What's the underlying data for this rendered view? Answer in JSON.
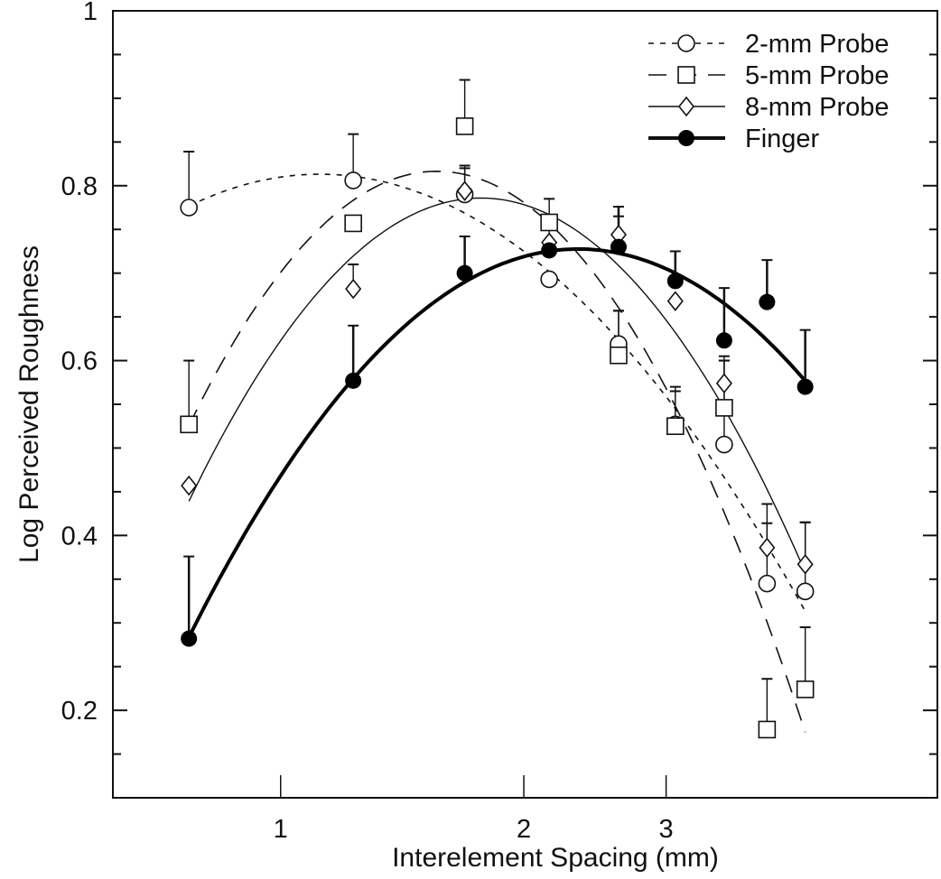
{
  "chart_data": {
    "type": "line",
    "title": "",
    "xlabel": "Interelement Spacing (mm)",
    "ylabel": "Log Perceived Roughness",
    "x_scale": "log",
    "xlim": [
      0.62,
      6.5
    ],
    "ylim": [
      0.1,
      1.0
    ],
    "x_ticks": [
      1,
      2,
      3
    ],
    "x_tick_labels": [
      "1",
      "2",
      "3"
    ],
    "y_ticks": [
      0.2,
      0.4,
      0.6,
      0.8,
      1.0
    ],
    "y_tick_labels": [
      "0.2",
      "0.4",
      "0.6",
      "0.8",
      "1"
    ],
    "y_minor_step": 0.05,
    "grid": false,
    "legend_position": "top-right",
    "fit": "quadratic in log(x)",
    "x": [
      0.77,
      1.23,
      1.69,
      2.15,
      2.62,
      3.08,
      3.54,
      4.0,
      4.46
    ],
    "series": [
      {
        "name": "2-mm Probe",
        "marker": "open-circle",
        "line": "short-dash",
        "color": "#111111",
        "values": [
          0.775,
          0.806,
          0.79,
          0.693,
          0.619,
          0.527,
          0.504,
          0.345,
          0.336
        ],
        "error_upper": [
          0.064,
          0.053,
          0.03,
          0.0,
          0.038,
          0.043,
          0.101,
          0.069,
          0.079
        ]
      },
      {
        "name": "5-mm Probe",
        "marker": "open-square",
        "line": "long-dash",
        "color": "#111111",
        "values": [
          0.527,
          0.757,
          0.868,
          0.758,
          0.606,
          0.525,
          0.546,
          0.178,
          0.224
        ],
        "error_upper": [
          0.073,
          0.0,
          0.053,
          0.027,
          0.051,
          0.04,
          0.054,
          0.058,
          0.071
        ]
      },
      {
        "name": "8-mm Probe",
        "marker": "open-diamond",
        "line": "thin-solid",
        "color": "#111111",
        "values": [
          0.457,
          0.682,
          0.794,
          0.735,
          0.744,
          0.668,
          0.574,
          0.386,
          0.367
        ],
        "error_upper": [
          0.0,
          0.028,
          0.029,
          0.025,
          0.021,
          0.0,
          0.026,
          0.05,
          0.048
        ]
      },
      {
        "name": "Finger",
        "marker": "filled-circle",
        "line": "thick-solid",
        "color": "#000000",
        "values": [
          0.282,
          0.577,
          0.7,
          0.726,
          0.73,
          0.691,
          0.623,
          0.667,
          0.57
        ],
        "error_upper": [
          0.094,
          0.063,
          0.042,
          0.0,
          0.046,
          0.034,
          0.06,
          0.048,
          0.065
        ]
      }
    ]
  }
}
